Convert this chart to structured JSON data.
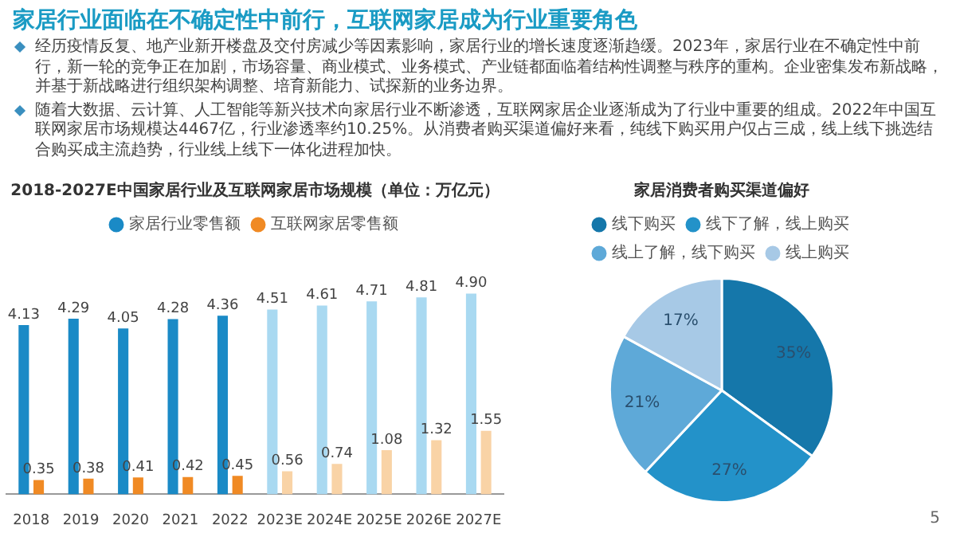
{
  "chart_data": [
    {
      "type": "other",
      "title": "家居行业面临在不确定性中前行，互联网家居成为行业重要角色",
      "annotations": [
        "经历疫情反复、地产业新开楼盘及交付房减少等因素影响，家居行业的增长速度逐渐趋缓。2023年，家居行业在不确定性中前行，新一轮的竞争正在加剧，市场容量、商业模式、业务模式、产业链都面临着结构性调整与秩序的重构。企业密集发布新战略，并基于新战略进行组织架构调整、培育新能力、试探新的业务边界。",
        "随着大数据、云计算、人工智能等新兴技术向家居行业不断渗透，互联网家居企业逐渐成为了行业中重要的组成。2022年中国互联网家居市场规模达4467亿，行业渗透率约10.25%。从消费者购买渠道偏好来看，纯线下购买用户仅占三成，线上线下挑选结合购买成主流趋势，行业线上线下一体化进程加快。",
        "5"
      ]
    },
    {
      "type": "bar",
      "title": "2018-2027E中国家居行业及互联网家居市场规模（单位：万亿元）",
      "categories": [
        "2018",
        "2019",
        "2020",
        "2021",
        "2022",
        "2023E",
        "2024E",
        "2025E",
        "2026E",
        "2027E"
      ],
      "series": [
        {
          "name": "家居行业零售额",
          "color": "#1a8ac6",
          "colors": [
            "#1a8ac6",
            "#1a8ac6",
            "#1a8ac6",
            "#1a8ac6",
            "#1a8ac6",
            "#a9d9f1",
            "#a9d9f1",
            "#a9d9f1",
            "#a9d9f1",
            "#a9d9f1"
          ],
          "values": [
            4.13,
            4.29,
            4.05,
            4.28,
            4.36,
            4.51,
            4.61,
            4.71,
            4.81,
            4.9
          ],
          "value_labels": [
            "4.13",
            "4.29",
            "4.05",
            "4.28",
            "4.36",
            "4.51",
            "4.61",
            "4.71",
            "4.81",
            "4.90"
          ]
        },
        {
          "name": "互联网家居零售额",
          "color": "#f08a24",
          "colors": [
            "#f08a24",
            "#f08a24",
            "#f08a24",
            "#f08a24",
            "#f08a24",
            "#f9d3a6",
            "#f9d3a6",
            "#f9d3a6",
            "#f9d3a6",
            "#f9d3a6"
          ],
          "values": [
            0.35,
            0.38,
            0.41,
            0.42,
            0.45,
            0.56,
            0.74,
            1.08,
            1.32,
            1.55
          ],
          "value_labels": [
            "0.35",
            "0.38",
            "0.41",
            "0.42",
            "0.45",
            "0.56",
            "0.74",
            "1.08",
            "1.32",
            "1.55"
          ]
        }
      ],
      "legend": "top",
      "grid": false
    },
    {
      "type": "pie",
      "title": "家居消费者购买渠道偏好",
      "categories": [
        "线下购买",
        "线下了解，线上购买",
        "线上了解，线下购买",
        "线上购买"
      ],
      "values": [
        35,
        27,
        21,
        17
      ],
      "colors": [
        "#1577aa",
        "#2392c9",
        "#5ea9d8",
        "#a7c9e6"
      ],
      "value_labels": [
        "35%",
        "27%",
        "21%",
        "17%"
      ],
      "legend": "top"
    }
  ]
}
